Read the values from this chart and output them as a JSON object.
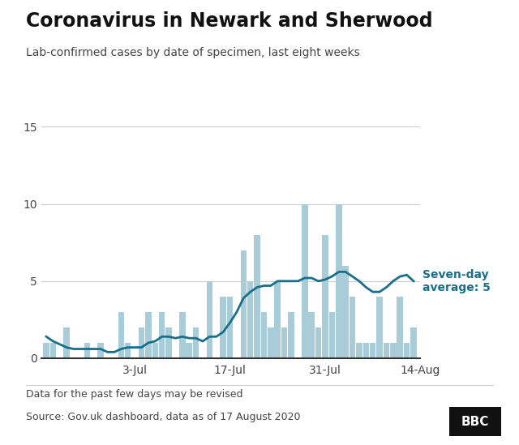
{
  "title": "Coronavirus in Newark and Sherwood",
  "subtitle": "Lab-confirmed cases by date of specimen, last eight weeks",
  "footer1": "Data for the past few days may be revised",
  "footer2": "Source: Gov.uk dashboard, data as of 17 August 2020",
  "bbc_logo": "BBC",
  "bar_color": "#a8cdd8",
  "line_color": "#1a6e8a",
  "label_color": "#1a6e8a",
  "annotation": "Seven-day\naverage: 5",
  "ylim": [
    0,
    15
  ],
  "yticks": [
    0,
    5,
    10,
    15
  ],
  "xtick_labels": [
    "3-Jul",
    "17-Jul",
    "31-Jul",
    "14-Aug"
  ],
  "xtick_positions": [
    13,
    27,
    41,
    55
  ],
  "bar_values": [
    1,
    1,
    0,
    2,
    0,
    0,
    1,
    0,
    1,
    0,
    0,
    3,
    1,
    0,
    2,
    3,
    1,
    3,
    2,
    0,
    3,
    1,
    2,
    0,
    5,
    0,
    4,
    4,
    0,
    7,
    5,
    8,
    3,
    2,
    5,
    2,
    3,
    0,
    10,
    3,
    2,
    8,
    3,
    10,
    6,
    4,
    1,
    1,
    1,
    4,
    1,
    1,
    4,
    1,
    2
  ],
  "seven_day_avg": [
    1.4,
    1.1,
    0.9,
    0.7,
    0.6,
    0.6,
    0.6,
    0.6,
    0.6,
    0.4,
    0.4,
    0.6,
    0.7,
    0.7,
    0.7,
    1.0,
    1.1,
    1.4,
    1.4,
    1.3,
    1.4,
    1.3,
    1.3,
    1.1,
    1.4,
    1.4,
    1.7,
    2.3,
    3.0,
    3.9,
    4.3,
    4.6,
    4.7,
    4.7,
    5.0,
    5.0,
    5.0,
    5.0,
    5.2,
    5.2,
    5.0,
    5.1,
    5.3,
    5.6,
    5.6,
    5.3,
    5.0,
    4.6,
    4.3,
    4.3,
    4.6,
    5.0,
    5.3,
    5.4,
    5.0
  ],
  "background_color": "#ffffff",
  "grid_color": "#cccccc",
  "title_fontsize": 17,
  "subtitle_fontsize": 10,
  "footer_fontsize": 9,
  "tick_fontsize": 10
}
